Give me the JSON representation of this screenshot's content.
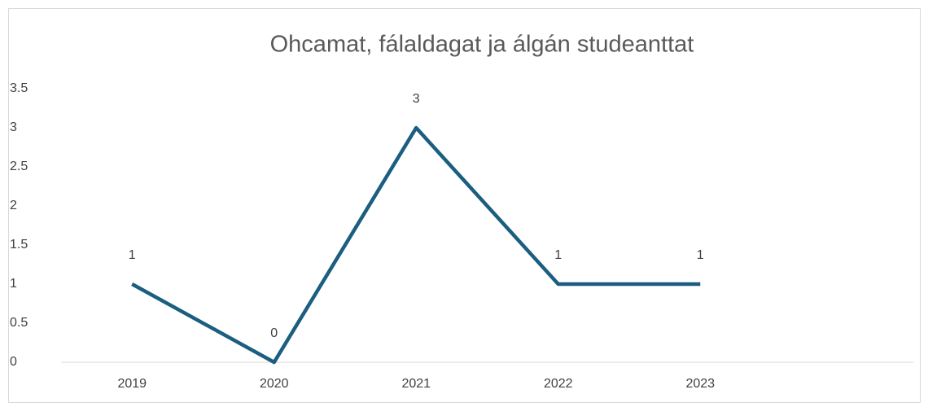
{
  "chart_data": {
    "type": "line",
    "title": "Ohcamat, fálaldagat ja álgán studeanttat",
    "categories": [
      "2019",
      "2020",
      "2021",
      "2022",
      "2023",
      null
    ],
    "series": [
      {
        "name": "Ohcamat, fálaldagat ja álgán studeanttat",
        "color": "#1b5e80",
        "values": [
          1,
          0,
          3,
          1,
          1,
          null
        ]
      }
    ],
    "ylim": [
      0,
      3.5
    ],
    "yticks": [
      0,
      0.5,
      1,
      1.5,
      2,
      2.5,
      3,
      3.5
    ],
    "grid": false,
    "data_labels": true
  }
}
